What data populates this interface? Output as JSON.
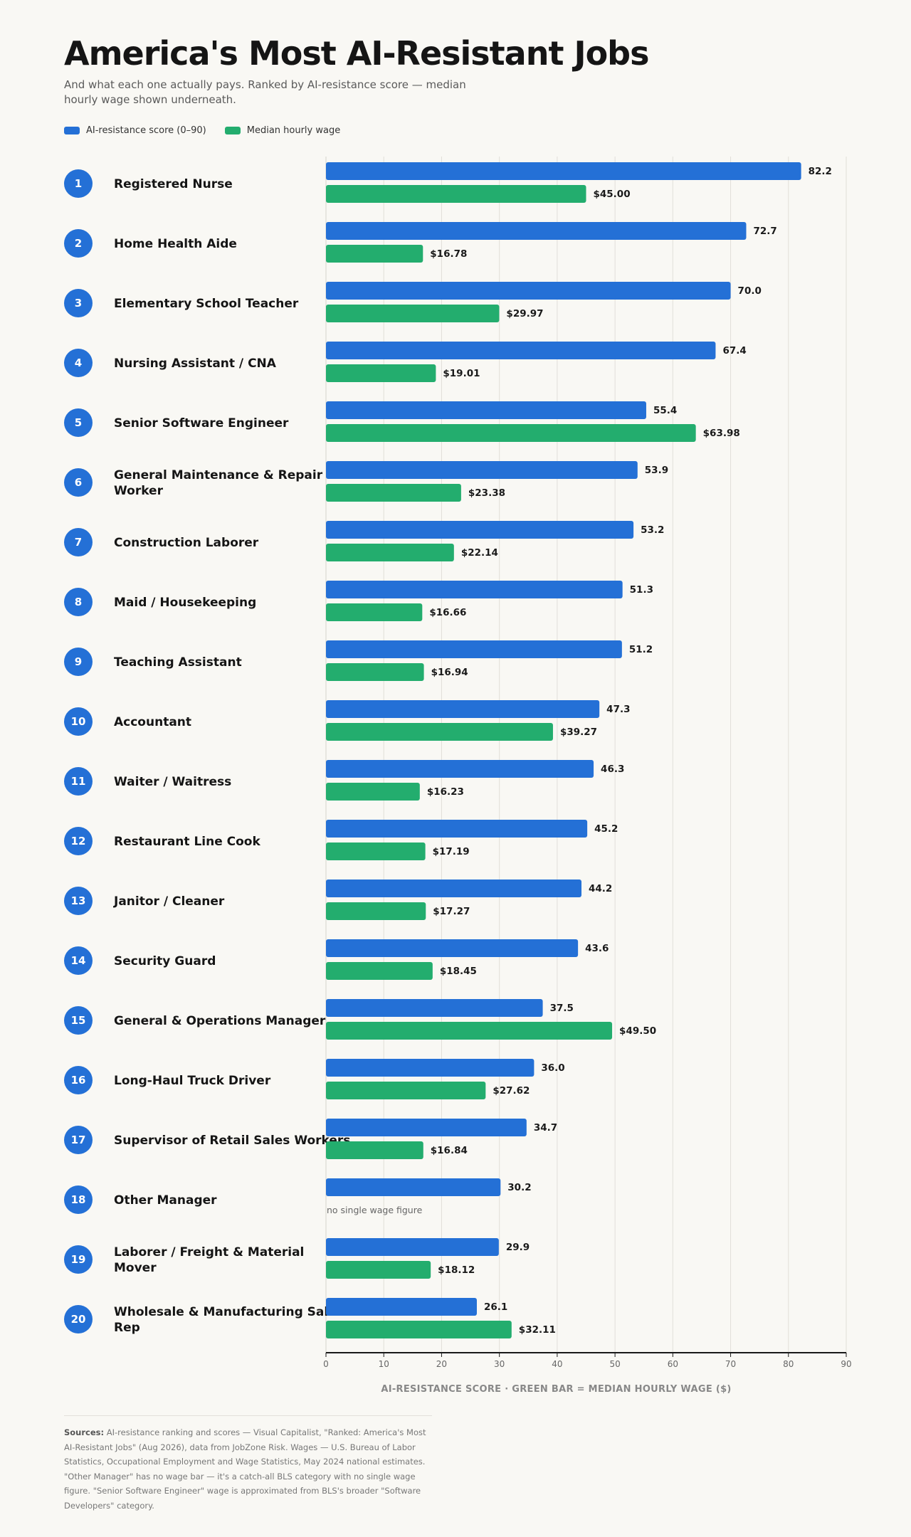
{
  "header": {
    "title": "America's Most AI-Resistant Jobs",
    "subtitle": "And what each one actually pays. Ranked by AI-resistance score — median hourly wage shown underneath."
  },
  "legend": {
    "score_label": "AI-resistance score (0–90)",
    "wage_label": "Median hourly wage"
  },
  "colors": {
    "score": "#2470d6",
    "wage": "#23ad6e",
    "rank_circle": "#2470d6"
  },
  "chart_data": {
    "type": "bar",
    "orientation": "horizontal",
    "xlim": [
      0,
      90
    ],
    "xticks": [
      0,
      10,
      20,
      30,
      40,
      50,
      60,
      70,
      80,
      90
    ],
    "xlabel": "AI-RESISTANCE SCORE · GREEN BAR = MEDIAN HOURLY WAGE ($)",
    "grid": true,
    "no_wage_text": "no single wage figure",
    "rows": [
      {
        "rank": "1",
        "name": [
          "Registered Nurse"
        ],
        "score": 82.2,
        "score_label": "82.2",
        "wage": 45.0,
        "wage_label": "$45.00"
      },
      {
        "rank": "2",
        "name": [
          "Home Health Aide"
        ],
        "score": 72.7,
        "score_label": "72.7",
        "wage": 16.78,
        "wage_label": "$16.78"
      },
      {
        "rank": "3",
        "name": [
          "Elementary School Teacher"
        ],
        "score": 70.0,
        "score_label": "70.0",
        "wage": 29.97,
        "wage_label": "$29.97"
      },
      {
        "rank": "4",
        "name": [
          "Nursing Assistant / CNA"
        ],
        "score": 67.4,
        "score_label": "67.4",
        "wage": 19.01,
        "wage_label": "$19.01"
      },
      {
        "rank": "5",
        "name": [
          "Senior Software Engineer"
        ],
        "score": 55.4,
        "score_label": "55.4",
        "wage": 63.98,
        "wage_label": "$63.98"
      },
      {
        "rank": "6",
        "name": [
          "General Maintenance & Repair",
          "Worker"
        ],
        "score": 53.9,
        "score_label": "53.9",
        "wage": 23.38,
        "wage_label": "$23.38"
      },
      {
        "rank": "7",
        "name": [
          "Construction Laborer"
        ],
        "score": 53.2,
        "score_label": "53.2",
        "wage": 22.14,
        "wage_label": "$22.14"
      },
      {
        "rank": "8",
        "name": [
          "Maid / Housekeeping"
        ],
        "score": 51.3,
        "score_label": "51.3",
        "wage": 16.66,
        "wage_label": "$16.66"
      },
      {
        "rank": "9",
        "name": [
          "Teaching Assistant"
        ],
        "score": 51.2,
        "score_label": "51.2",
        "wage": 16.94,
        "wage_label": "$16.94"
      },
      {
        "rank": "10",
        "name": [
          "Accountant"
        ],
        "score": 47.3,
        "score_label": "47.3",
        "wage": 39.27,
        "wage_label": "$39.27"
      },
      {
        "rank": "11",
        "name": [
          "Waiter / Waitress"
        ],
        "score": 46.3,
        "score_label": "46.3",
        "wage": 16.23,
        "wage_label": "$16.23"
      },
      {
        "rank": "12",
        "name": [
          "Restaurant Line Cook"
        ],
        "score": 45.2,
        "score_label": "45.2",
        "wage": 17.19,
        "wage_label": "$17.19"
      },
      {
        "rank": "13",
        "name": [
          "Janitor / Cleaner"
        ],
        "score": 44.2,
        "score_label": "44.2",
        "wage": 17.27,
        "wage_label": "$17.27"
      },
      {
        "rank": "14",
        "name": [
          "Security Guard"
        ],
        "score": 43.6,
        "score_label": "43.6",
        "wage": 18.45,
        "wage_label": "$18.45"
      },
      {
        "rank": "15",
        "name": [
          "General & Operations Manager"
        ],
        "score": 37.5,
        "score_label": "37.5",
        "wage": 49.5,
        "wage_label": "$49.50"
      },
      {
        "rank": "16",
        "name": [
          "Long-Haul Truck Driver"
        ],
        "score": 36.0,
        "score_label": "36.0",
        "wage": 27.62,
        "wage_label": "$27.62"
      },
      {
        "rank": "17",
        "name": [
          "Supervisor of Retail Sales Workers"
        ],
        "score": 34.7,
        "score_label": "34.7",
        "wage": 16.84,
        "wage_label": "$16.84"
      },
      {
        "rank": "18",
        "name": [
          "Other Manager"
        ],
        "score": 30.2,
        "score_label": "30.2",
        "wage": null,
        "wage_label": null
      },
      {
        "rank": "19",
        "name": [
          "Laborer / Freight & Material",
          "Mover"
        ],
        "score": 29.9,
        "score_label": "29.9",
        "wage": 18.12,
        "wage_label": "$18.12"
      },
      {
        "rank": "20",
        "name": [
          "Wholesale & Manufacturing Sales",
          "Rep"
        ],
        "score": 26.1,
        "score_label": "26.1",
        "wage": 32.11,
        "wage_label": "$32.11"
      }
    ]
  },
  "footer": {
    "sources_heading": "Sources:",
    "sources_text": " AI-resistance ranking and scores — Visual Capitalist, \"Ranked: America's Most AI-Resistant Jobs\" (Aug 2026), data from JobZone Risk. Wages — U.S. Bureau of Labor Statistics, Occupational Employment and Wage Statistics, May 2024 national estimates. \"Other Manager\" has no wage bar — it's a catch-all BLS category with no single wage figure. \"Senior Software Engineer\" wage is approximated from BLS's broader \"Software Developers\" category."
  }
}
